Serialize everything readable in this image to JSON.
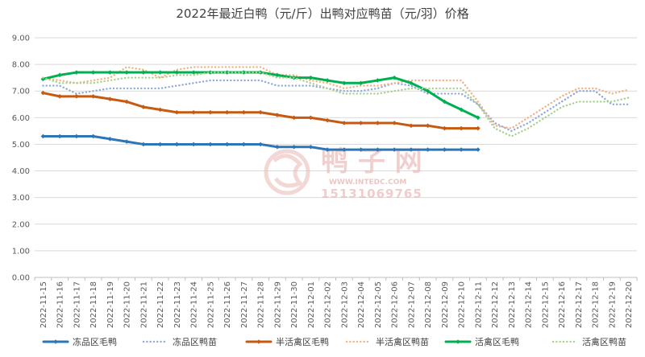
{
  "chart_data": {
    "type": "line",
    "title": "2022年最近白鸭（元/斤）出鸭对应鸭苗（元/羽）价格",
    "ylim": [
      0,
      9
    ],
    "yticks": [
      "0.00",
      "1.00",
      "2.00",
      "3.00",
      "4.00",
      "5.00",
      "6.00",
      "7.00",
      "8.00",
      "9.00"
    ],
    "grid": "horizontal",
    "legend_position": "bottom",
    "categories": [
      "2022-11-15",
      "2022-11-16",
      "2022-11-17",
      "2022-11-18",
      "2022-11-19",
      "2022-11-20",
      "2022-11-21",
      "2022-11-22",
      "2022-11-23",
      "2022-11-24",
      "2022-11-25",
      "2022-11-26",
      "2022-11-27",
      "2022-11-28",
      "2022-11-29",
      "2022-11-30",
      "2022-12-01",
      "2022-12-02",
      "2022-12-03",
      "2022-12-04",
      "2022-12-05",
      "2022-12-06",
      "2022-12-07",
      "2022-12-08",
      "2022-12-09",
      "2022-12-10",
      "2022-12-11",
      "2022-12-12",
      "2022-12-13",
      "2022-12-14",
      "2022-12-15",
      "2022-12-16",
      "2022-12-17",
      "2022-12-18",
      "2022-12-19",
      "2022-12-20"
    ],
    "series": [
      {
        "name": "冻品区毛鸭",
        "style": "solid",
        "color": "#2e75b6",
        "values": [
          5.3,
          5.3,
          5.3,
          5.3,
          5.2,
          5.1,
          5.0,
          5.0,
          5.0,
          5.0,
          5.0,
          5.0,
          5.0,
          5.0,
          4.9,
          4.9,
          4.9,
          4.8,
          4.8,
          4.8,
          4.8,
          4.8,
          4.8,
          4.8,
          4.8,
          4.8,
          4.8,
          null,
          null,
          null,
          null,
          null,
          null,
          null,
          null,
          null
        ]
      },
      {
        "name": "冻品区鸭苗",
        "style": "dotted",
        "color": "#8eaadb",
        "values": [
          7.2,
          7.2,
          6.9,
          7.0,
          7.1,
          7.1,
          7.1,
          7.1,
          7.2,
          7.3,
          7.4,
          7.4,
          7.4,
          7.4,
          7.2,
          7.2,
          7.2,
          7.1,
          7.0,
          7.0,
          7.1,
          7.3,
          7.2,
          6.9,
          6.9,
          6.9,
          6.5,
          5.8,
          5.5,
          5.8,
          6.2,
          6.6,
          7.0,
          7.0,
          6.5,
          6.5
        ]
      },
      {
        "name": "半活禽区毛鸭",
        "style": "solid",
        "color": "#c55a11",
        "values": [
          6.93,
          6.8,
          6.8,
          6.8,
          6.7,
          6.6,
          6.4,
          6.3,
          6.2,
          6.2,
          6.2,
          6.2,
          6.2,
          6.2,
          6.1,
          6.0,
          6.0,
          5.9,
          5.8,
          5.8,
          5.8,
          5.8,
          5.7,
          5.7,
          5.6,
          5.6,
          5.6,
          null,
          null,
          null,
          null,
          null,
          null,
          null,
          null,
          null
        ]
      },
      {
        "name": "半活禽区鸭苗",
        "style": "dotted",
        "color": "#f4b183",
        "values": [
          7.5,
          7.4,
          7.3,
          7.4,
          7.5,
          7.9,
          7.8,
          7.5,
          7.8,
          7.9,
          7.9,
          7.9,
          7.9,
          7.9,
          7.6,
          7.6,
          7.4,
          7.3,
          7.1,
          7.2,
          7.2,
          7.3,
          7.4,
          7.4,
          7.4,
          7.4,
          6.6,
          5.7,
          5.6,
          6.0,
          6.4,
          6.8,
          7.1,
          7.1,
          6.9,
          7.05
        ]
      },
      {
        "name": "活禽区毛鸭",
        "style": "solid",
        "color": "#00b050",
        "values": [
          7.45,
          7.6,
          7.7,
          7.7,
          7.7,
          7.7,
          7.7,
          7.7,
          7.7,
          7.7,
          7.7,
          7.7,
          7.7,
          7.7,
          7.6,
          7.5,
          7.5,
          7.4,
          7.3,
          7.3,
          7.4,
          7.5,
          7.3,
          7.0,
          6.6,
          6.3,
          6.0,
          null,
          null,
          null,
          null,
          null,
          null,
          null,
          null,
          null
        ]
      },
      {
        "name": "活禽区鸭苗",
        "style": "dotted",
        "color": "#a9d18e",
        "values": [
          7.5,
          7.3,
          7.3,
          7.3,
          7.4,
          7.5,
          7.5,
          7.5,
          7.6,
          7.6,
          7.7,
          7.7,
          7.7,
          7.7,
          7.5,
          7.5,
          7.3,
          7.1,
          6.9,
          6.9,
          6.9,
          7.0,
          7.1,
          7.1,
          7.1,
          7.1,
          6.5,
          5.6,
          5.3,
          5.6,
          6.0,
          6.4,
          6.6,
          6.6,
          6.6,
          6.75
        ]
      }
    ]
  },
  "watermark": {
    "cn": "鸭 子 网",
    "site": "WWW.INTEDC.COM",
    "phone": "15131069765",
    "color": "#e8b8b4"
  }
}
